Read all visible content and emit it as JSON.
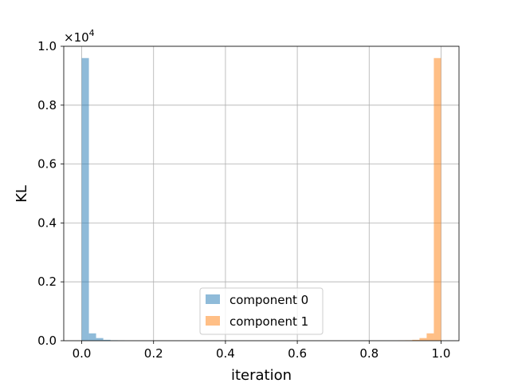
{
  "chart_data": {
    "type": "bar",
    "xlabel": "iteration",
    "ylabel": "KL",
    "y_multiplier_base": "×10",
    "y_multiplier_exp": "4",
    "xlim": [
      -0.05,
      1.05
    ],
    "ylim": [
      0,
      1.0
    ],
    "grid": true,
    "legend_placement": "lower-center",
    "x_ticks": [
      0.0,
      0.2,
      0.4,
      0.6,
      0.8,
      1.0
    ],
    "x_tick_labels": [
      "0.0",
      "0.2",
      "0.4",
      "0.6",
      "0.8",
      "1.0"
    ],
    "y_ticks": [
      0.0,
      0.2,
      0.4,
      0.6,
      0.8,
      1.0
    ],
    "y_tick_labels": [
      "0.0",
      "0.2",
      "0.4",
      "0.6",
      "0.8",
      "1.0"
    ],
    "bin_width": 0.02,
    "series": [
      {
        "name": "component 0",
        "color": "#1f77b4",
        "bins": [
          {
            "x0": 0.0,
            "value": 0.96
          },
          {
            "x0": 0.02,
            "value": 0.025
          },
          {
            "x0": 0.04,
            "value": 0.009
          },
          {
            "x0": 0.06,
            "value": 0.003
          },
          {
            "x0": 0.08,
            "value": 0.0015
          },
          {
            "x0": 0.1,
            "value": 0.0008
          }
        ]
      },
      {
        "name": "component 1",
        "color": "#ff7f0e",
        "bins": [
          {
            "x0": 0.88,
            "value": 0.0008
          },
          {
            "x0": 0.9,
            "value": 0.0015
          },
          {
            "x0": 0.92,
            "value": 0.003
          },
          {
            "x0": 0.94,
            "value": 0.009
          },
          {
            "x0": 0.96,
            "value": 0.025
          },
          {
            "x0": 0.98,
            "value": 0.96
          }
        ]
      }
    ]
  }
}
